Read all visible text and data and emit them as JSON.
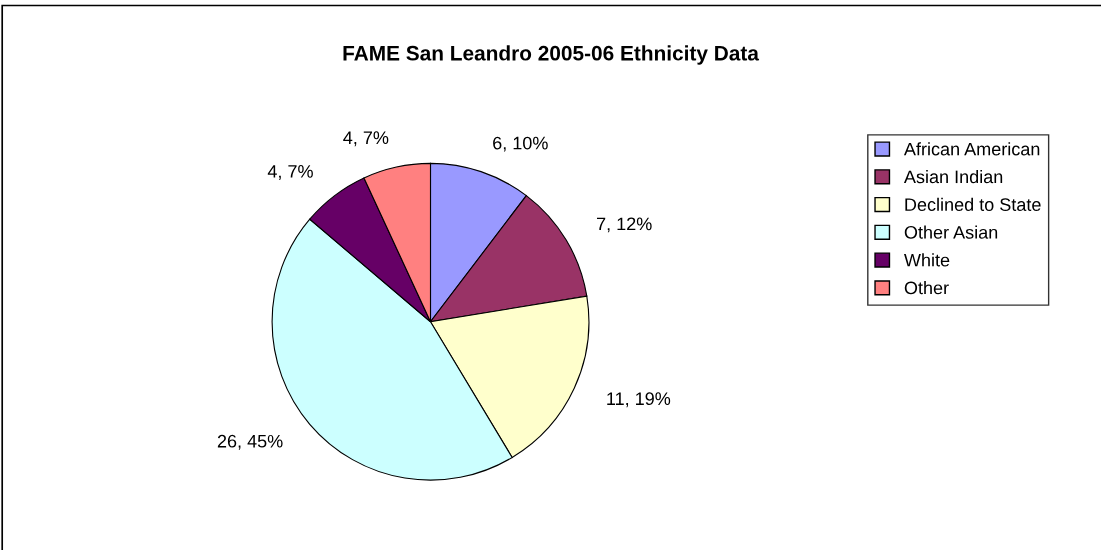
{
  "chart_data": {
    "type": "pie",
    "title": "FAME San Leandro 2005-06 Ethnicity Data",
    "categories": [
      "African American",
      "Asian Indian",
      "Declined to State",
      "Other Asian",
      "White",
      "Other"
    ],
    "values": [
      6,
      7,
      11,
      26,
      4,
      4
    ],
    "colors": [
      "#9999ff",
      "#993366",
      "#ffffcc",
      "#ccffff",
      "#660066",
      "#ff8080"
    ],
    "value_labels": [
      "6, 10%",
      "7, 12%",
      "11, 19%",
      "26, 45%",
      "4, 7%",
      "4, 7%"
    ],
    "legend": "right"
  }
}
